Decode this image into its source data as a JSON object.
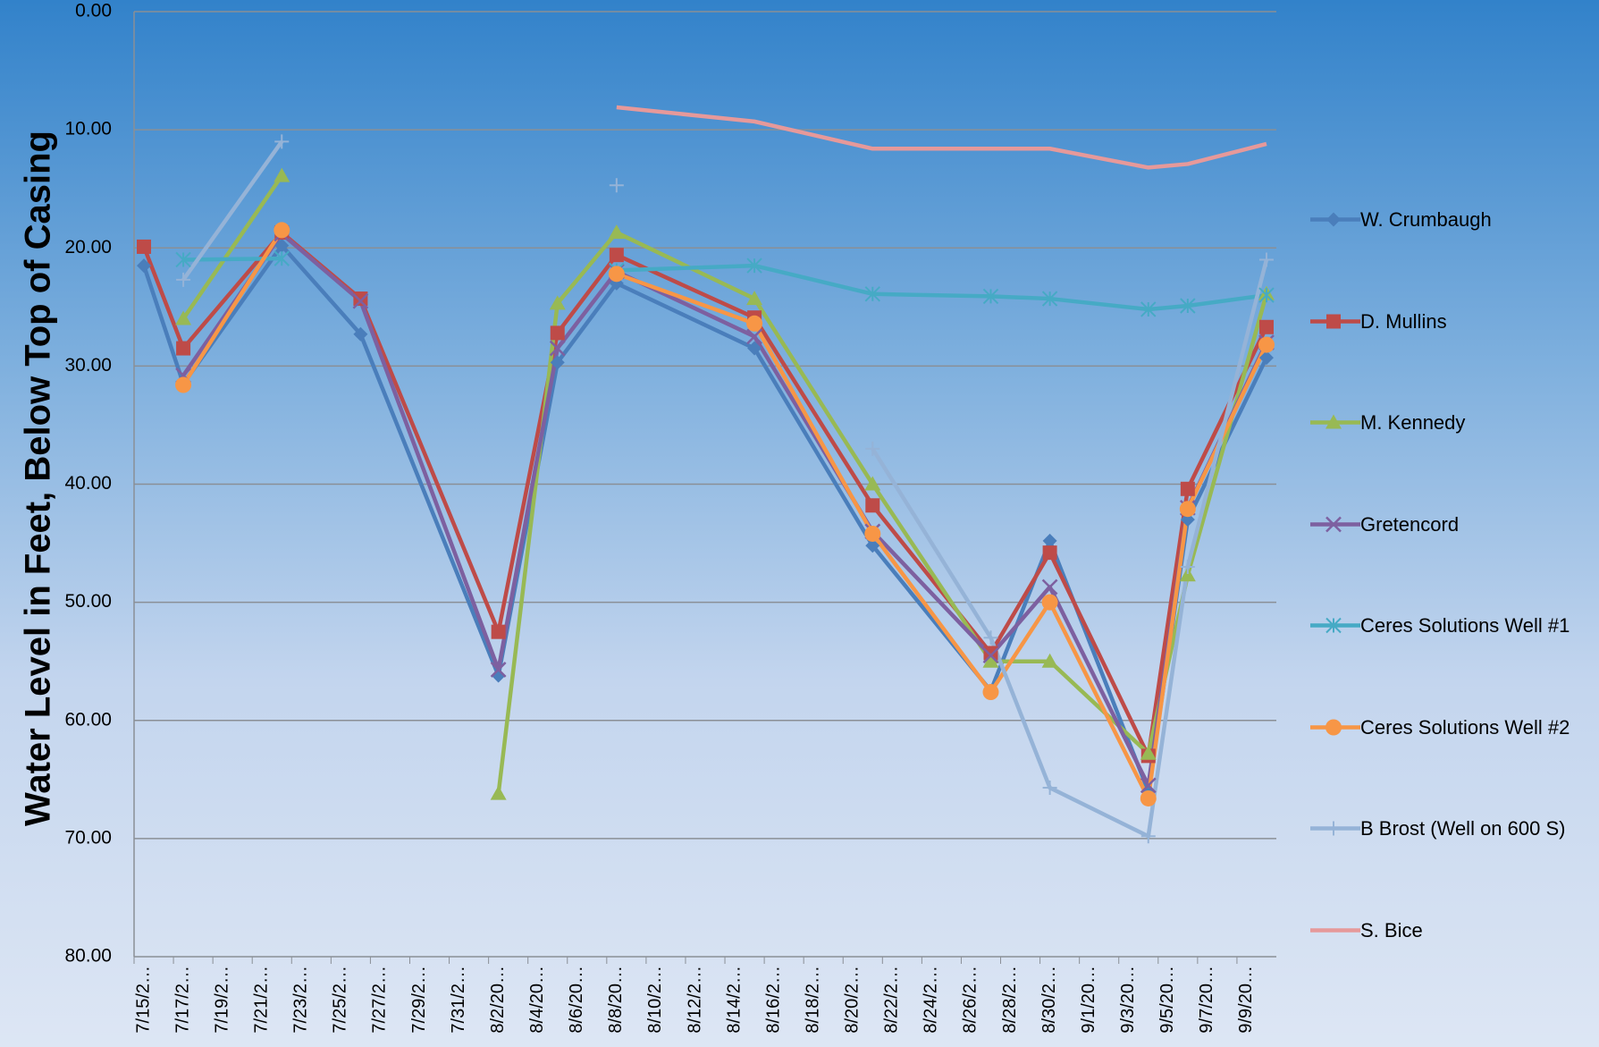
{
  "chart_data": {
    "type": "line",
    "y_label": "Water Level in Feet, Below Top of Casing",
    "categories": [
      "7/15/2…",
      "7/17/2…",
      "7/19/2…",
      "7/21/2…",
      "7/23/2…",
      "7/25/2…",
      "7/27/2…",
      "7/29/2…",
      "7/31/2…",
      "8/2/20…",
      "8/4/20…",
      "8/6/20…",
      "8/8/20…",
      "8/10/2…",
      "8/12/2…",
      "8/14/2…",
      "8/16/2…",
      "8/18/2…",
      "8/20/2…",
      "8/22/2…",
      "8/24/2…",
      "8/26/2…",
      "8/28/2…",
      "8/30/2…",
      "9/1/20…",
      "9/3/20…",
      "9/5/20…",
      "9/7/20…",
      "9/9/20…"
    ],
    "x": [
      "7/15",
      "7/17",
      "7/22",
      "7/26",
      "8/2",
      "8/5",
      "8/8",
      "8/15",
      "8/21",
      "8/27",
      "8/30",
      "9/4",
      "9/6",
      "9/10"
    ],
    "series": [
      {
        "name": "W. Crumbaugh",
        "color": "#4a7ebb",
        "marker": "diamond",
        "values": [
          21.5,
          31.5,
          19.8,
          27.3,
          56.2,
          29.7,
          23.0,
          28.5,
          45.2,
          57.5,
          44.8,
          66.0,
          43.0,
          29.3
        ]
      },
      {
        "name": "D. Mullins",
        "color": "#be4b48",
        "marker": "square",
        "values": [
          19.9,
          28.5,
          18.7,
          24.3,
          52.5,
          27.2,
          20.6,
          25.9,
          41.8,
          54.3,
          45.8,
          63.0,
          40.4,
          26.7
        ]
      },
      {
        "name": "M. Kennedy",
        "color": "#98b954",
        "marker": "triangle",
        "values": [
          null,
          26.0,
          13.9,
          null,
          66.2,
          24.7,
          18.7,
          24.3,
          40.0,
          55.0,
          55.0,
          62.8,
          47.7,
          23.9
        ]
      },
      {
        "name": "Gretencord",
        "color": "#7d60a0",
        "marker": "x",
        "values": [
          null,
          30.8,
          18.8,
          24.5,
          55.7,
          28.5,
          22.0,
          27.5,
          44.0,
          54.5,
          48.7,
          65.5,
          42.0,
          28.0
        ]
      },
      {
        "name": "Ceres Solutions Well #1",
        "color": "#46aac5",
        "marker": "star",
        "values": [
          null,
          21.0,
          20.9,
          null,
          null,
          null,
          21.9,
          21.5,
          23.9,
          24.1,
          24.3,
          25.2,
          24.9,
          24.0
        ]
      },
      {
        "name": "Ceres Solutions Well #2",
        "color": "#f79646",
        "marker": "circle",
        "values": [
          null,
          31.6,
          18.5,
          null,
          null,
          null,
          22.2,
          26.4,
          44.2,
          57.6,
          50.0,
          66.6,
          42.1,
          28.2
        ]
      },
      {
        "name": "B Brost (Well on 600 S)",
        "color": "#95b3d7",
        "marker": "plus",
        "values": [
          null,
          22.7,
          11.0,
          null,
          null,
          null,
          14.7,
          null,
          37.0,
          53.0,
          65.7,
          69.8,
          47.0,
          21.0
        ]
      },
      {
        "name": "S. Bice",
        "color": "#e6999a",
        "marker": "none",
        "values": [
          null,
          null,
          null,
          null,
          null,
          null,
          8.1,
          9.3,
          11.6,
          11.6,
          11.6,
          13.2,
          12.9,
          11.2
        ]
      }
    ],
    "ylim": [
      0,
      80
    ],
    "y_reversed": true,
    "yticks": [
      {
        "value": 0,
        "label": "0.00"
      },
      {
        "value": 10,
        "label": "10.00"
      },
      {
        "value": 20,
        "label": "20.00"
      },
      {
        "value": 30,
        "label": "30.00"
      },
      {
        "value": 40,
        "label": "40.00"
      },
      {
        "value": 50,
        "label": "50.00"
      },
      {
        "value": 60,
        "label": "60.00"
      },
      {
        "value": 70,
        "label": "70.00"
      },
      {
        "value": 80,
        "label": "80.00"
      }
    ],
    "grid": true,
    "legend": "right"
  }
}
